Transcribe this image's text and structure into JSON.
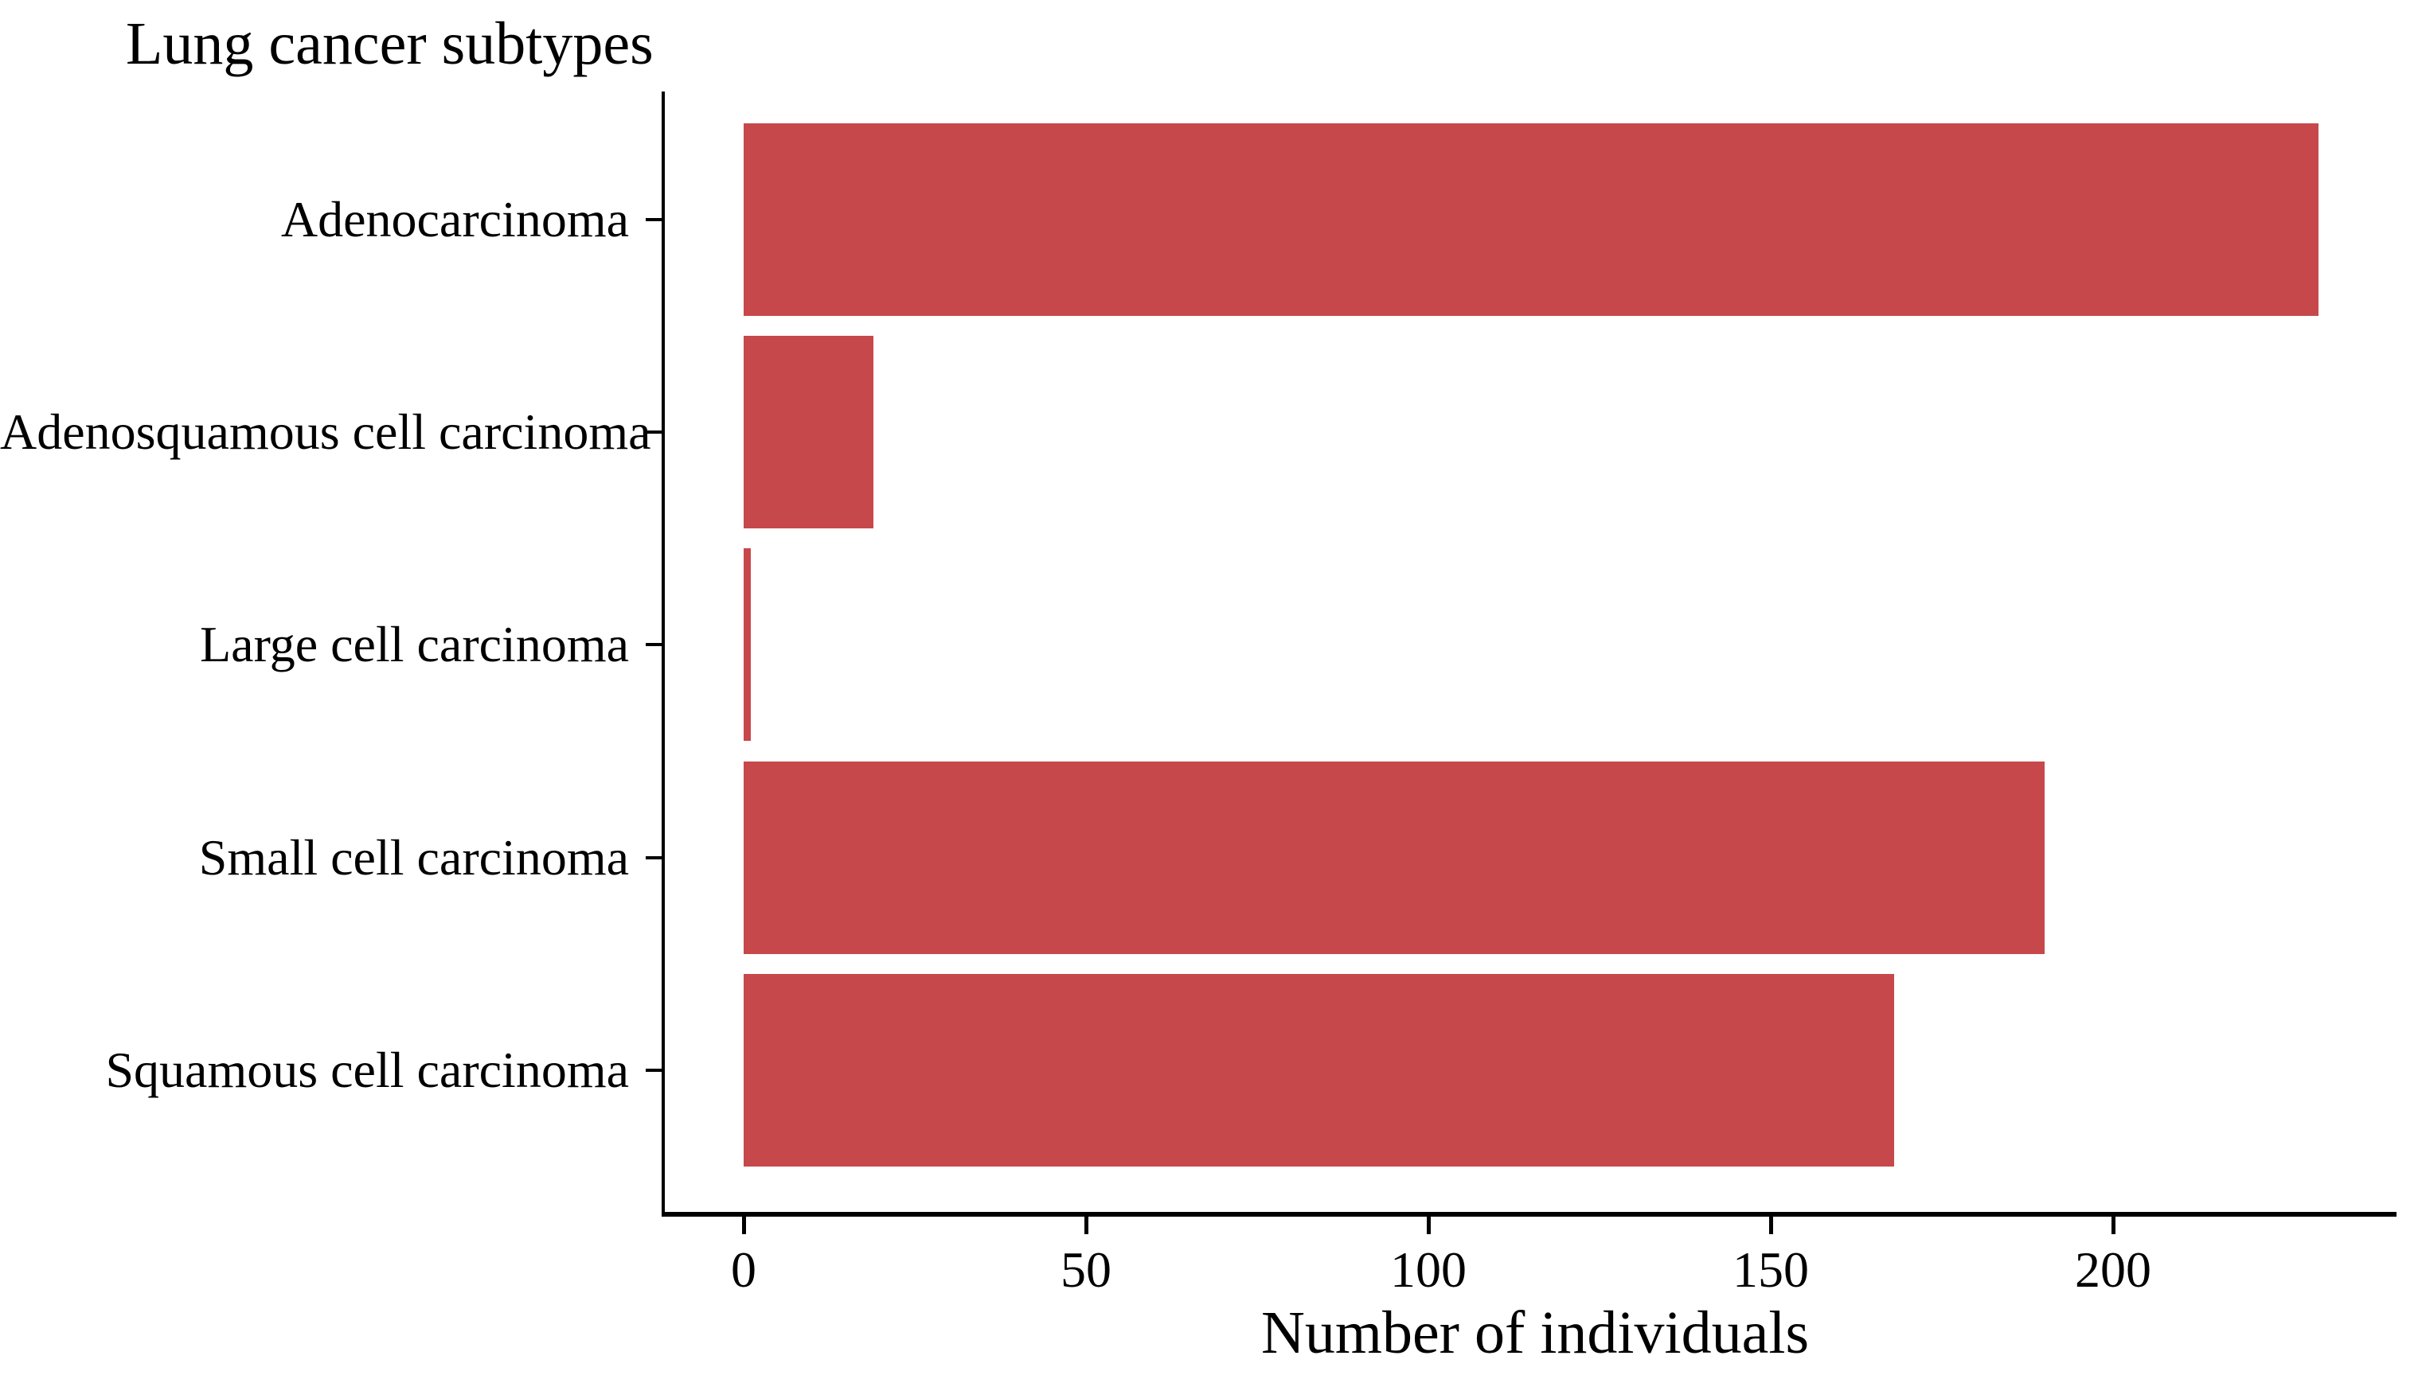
{
  "page": {
    "background": "#ffffff"
  },
  "chart_data": {
    "type": "bar",
    "orientation": "horizontal",
    "title": "Lung cancer subtypes",
    "xlabel": "Number of individuals",
    "categories": [
      "Adenocarcinoma",
      "Adenosquamous cell carcinoma",
      "Large cell carcinoma",
      "Small cell carcinoma",
      "Squamous cell carcinoma"
    ],
    "values": [
      230,
      19,
      1,
      190,
      168
    ],
    "x_ticks": [
      0,
      50,
      100,
      150,
      200
    ],
    "xlim": [
      0,
      241
    ],
    "grid": false,
    "legend_position": "none",
    "bar_color": "#C7484B",
    "axis_color": "#000000",
    "text_color": "#000000"
  }
}
